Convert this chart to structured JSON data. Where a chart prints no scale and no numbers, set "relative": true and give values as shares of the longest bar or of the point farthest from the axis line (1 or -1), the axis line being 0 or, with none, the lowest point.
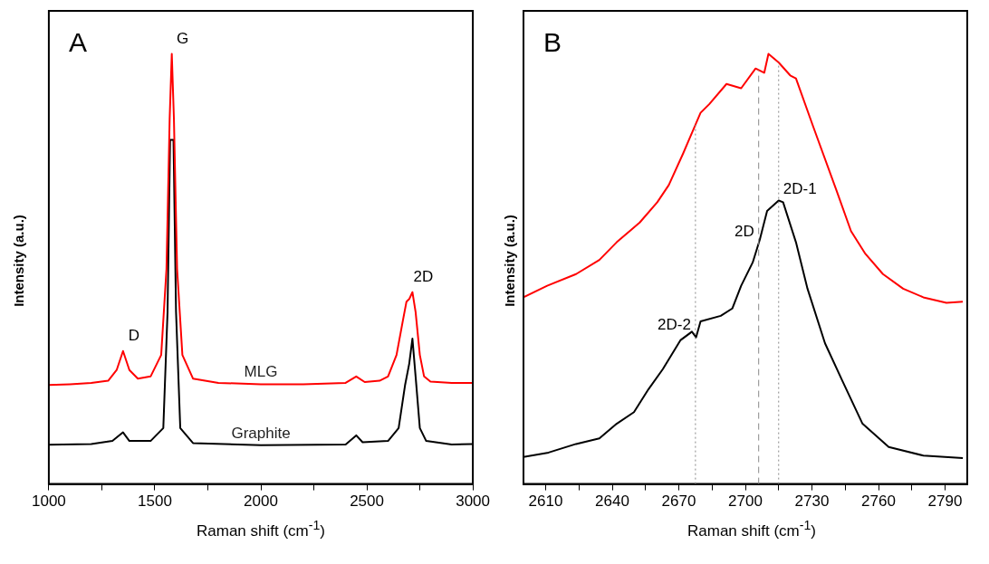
{
  "chart_data": [
    {
      "type": "line",
      "title": "A",
      "xlabel": "Raman shift (cm$^{-1}$)",
      "ylabel": "Intensity (a.u.)",
      "relative": true,
      "xlim": [
        1000,
        3000
      ],
      "xticks": [
        1000,
        {
          "value": 1250,
          "label": null
        },
        1500,
        {
          "value": 1750,
          "label": null
        },
        2000,
        {
          "value": 2250,
          "label": null
        },
        2500,
        {
          "value": 2750,
          "label": null
        },
        3000
      ],
      "series": [
        {
          "name": "MLG",
          "color": "#ff0000",
          "x": [
            1000,
            1100,
            1200,
            1280,
            1320,
            1350,
            1380,
            1420,
            1480,
            1530,
            1555,
            1570,
            1580,
            1590,
            1605,
            1630,
            1680,
            1800,
            2000,
            2200,
            2400,
            2450,
            2490,
            2560,
            2600,
            2640,
            2670,
            2687,
            2700,
            2715,
            2730,
            2750,
            2770,
            2800,
            2900,
            3000
          ],
          "values": [
            0.23,
            0.232,
            0.235,
            0.24,
            0.265,
            0.309,
            0.265,
            0.245,
            0.25,
            0.3,
            0.5,
            0.85,
            1,
            0.85,
            0.5,
            0.3,
            0.245,
            0.235,
            0.232,
            0.232,
            0.235,
            0.25,
            0.237,
            0.24,
            0.25,
            0.3,
            0.38,
            0.424,
            0.43,
            0.446,
            0.4,
            0.3,
            0.25,
            0.238,
            0.235,
            0.235
          ]
        },
        {
          "name": "Graphite",
          "color": "#000000",
          "x": [
            1000,
            1200,
            1300,
            1350,
            1380,
            1480,
            1540,
            1560,
            1572,
            1580,
            1588,
            1600,
            1620,
            1680,
            2000,
            2400,
            2450,
            2480,
            2600,
            2650,
            2680,
            2700,
            2715,
            2730,
            2750,
            2780,
            2900,
            3000
          ],
          "values": [
            0.091,
            0.093,
            0.1,
            0.12,
            0.1,
            0.1,
            0.13,
            0.4,
            0.8,
            null,
            0.8,
            0.4,
            0.13,
            0.095,
            0.09,
            0.092,
            0.113,
            0.097,
            0.1,
            0.13,
            0.229,
            0.28,
            0.338,
            0.25,
            0.13,
            0.1,
            0.092,
            0.093
          ]
        }
      ],
      "annotations": [
        {
          "text": "D",
          "x": 1350,
          "y": 0.309
        },
        {
          "text": "G",
          "x": 1580,
          "y": 1
        },
        {
          "text": "2D",
          "x": 2715,
          "y": 0.446
        }
      ]
    },
    {
      "type": "line",
      "title": "B",
      "xlabel": "Raman shift (cm$^{-1}$)",
      "ylabel": "Intensity (a.u.)",
      "relative": true,
      "xlim": [
        2600,
        2800
      ],
      "xticks": [
        2610,
        {
          "value": 2625,
          "label": null
        },
        2640,
        {
          "value": 2655,
          "label": null
        },
        2670,
        {
          "value": 2685,
          "label": null
        },
        2700,
        {
          "value": 2715,
          "label": null
        },
        2730,
        {
          "value": 2745,
          "label": null
        },
        2760,
        {
          "value": 2775,
          "label": null
        },
        2790
      ],
      "series": [
        {
          "color": "#ff0000",
          "x": [
            2600,
            2610.7,
            2623.7,
            2634.2,
            2642,
            2652.4,
            2660.3,
            2665.5,
            2672,
            2679.8,
            2683.7,
            2691.5,
            2698.1,
            2704.6,
            2708.5,
            2710.4,
            2715,
            2720.2,
            2722.8,
            2730.7,
            2741.1,
            2747.6,
            2754.1,
            2762,
            2771.1,
            2780.2,
            2790.6,
            2798
          ],
          "values": [
            0.434,
            0.461,
            0.488,
            0.521,
            0.562,
            0.608,
            0.655,
            0.695,
            0.769,
            0.863,
            0.883,
            0.93,
            0.92,
            0.966,
            0.956,
            1,
            0.98,
            0.95,
            0.943,
            0.829,
            0.682,
            0.588,
            0.535,
            0.488,
            0.454,
            0.434,
            0.421,
            0.424
          ]
        },
        {
          "color": "#000000",
          "x": [
            2600,
            2611.3,
            2623.7,
            2634.2,
            2642,
            2649.8,
            2656.3,
            2662.8,
            2670.7,
            2675.9,
            2677.8,
            2679.8,
            2688.9,
            2694.1,
            2698.1,
            2703.3,
            2706.5,
            2709.8,
            2715,
            2717,
            2722.8,
            2728,
            2735.9,
            2743.7,
            2752.8,
            2764.6,
            2780.2,
            2798
          ],
          "values": [
            0.063,
            0.073,
            0.093,
            0.106,
            0.14,
            0.167,
            0.22,
            0.267,
            0.334,
            0.354,
            0.341,
            0.378,
            0.391,
            0.408,
            0.461,
            0.515,
            0.568,
            0.635,
            0.659,
            0.655,
            0.562,
            0.454,
            0.327,
            0.24,
            0.14,
            0.086,
            0.066,
            0.06
          ]
        }
      ],
      "ref_lines": [
        {
          "axis": "x",
          "value": 2706,
          "label": "2D",
          "color": "#888888",
          "line_style": "dashed"
        },
        {
          "axis": "x",
          "value": 2677.5,
          "label": "2D-2",
          "color": "#888888",
          "line_style": "dotted"
        },
        {
          "axis": "x",
          "value": 2715,
          "label": "2D-1",
          "color": "#888888",
          "line_style": "dotted"
        }
      ]
    }
  ]
}
